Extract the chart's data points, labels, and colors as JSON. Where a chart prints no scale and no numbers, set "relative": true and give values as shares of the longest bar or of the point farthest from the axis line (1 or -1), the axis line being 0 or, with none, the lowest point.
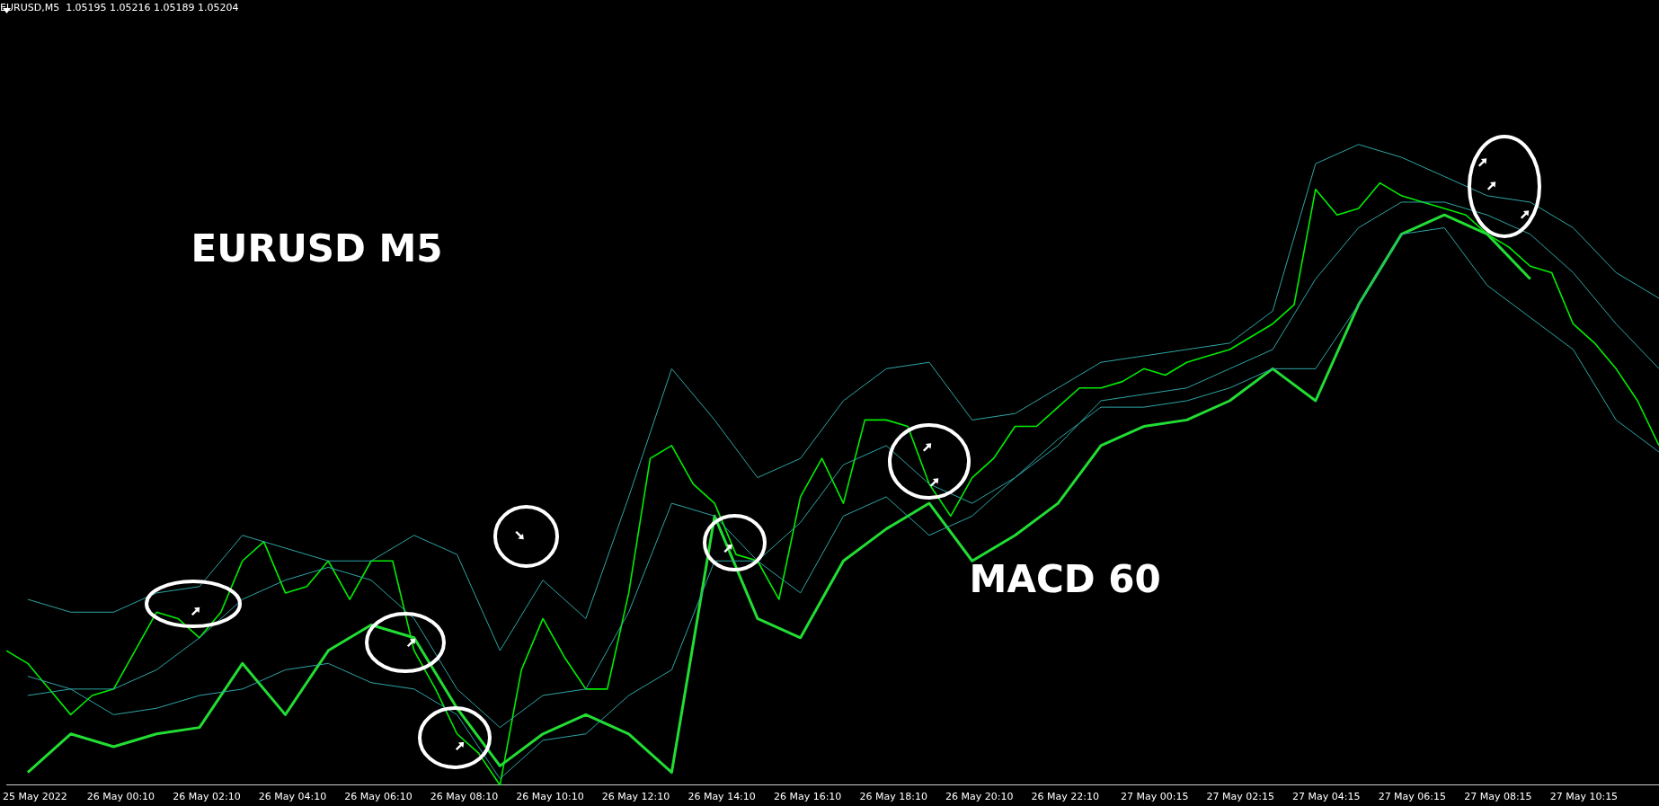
{
  "chart_data": {
    "type": "line",
    "title": "EURUSD,M5  1.05195 1.05216 1.05189 1.05204",
    "annotations": [
      "EURUSD M5",
      "MACD 60"
    ],
    "relative": true,
    "xlim": [
      "2022-05-25T21:30",
      "2022-05-27T12:00"
    ],
    "xticks": [
      {
        "value": "2022-05-25T22:10",
        "label": "25 May 2022"
      },
      {
        "value": "2022-05-26T00:10",
        "label": "26 May 00:10"
      },
      {
        "value": "2022-05-26T02:10",
        "label": "26 May 02:10"
      },
      {
        "value": "2022-05-26T04:10",
        "label": "26 May 04:10"
      },
      {
        "value": "2022-05-26T06:10",
        "label": "26 May 06:10"
      },
      {
        "value": "2022-05-26T08:10",
        "label": "26 May 08:10"
      },
      {
        "value": "2022-05-26T10:10",
        "label": "26 May 10:10"
      },
      {
        "value": "2022-05-26T12:10",
        "label": "26 May 12:10"
      },
      {
        "value": "2022-05-26T14:10",
        "label": "26 May 14:10"
      },
      {
        "value": "2022-05-26T16:10",
        "label": "26 May 16:10"
      },
      {
        "value": "2022-05-26T18:10",
        "label": "26 May 18:10"
      },
      {
        "value": "2022-05-26T20:10",
        "label": "26 May 20:10"
      },
      {
        "value": "2022-05-26T22:10",
        "label": "26 May 22:10"
      },
      {
        "value": "2022-05-27T00:15",
        "label": "27 May 00:15"
      },
      {
        "value": "2022-05-27T02:15",
        "label": "27 May 02:15"
      },
      {
        "value": "2022-05-27T04:15",
        "label": "27 May 04:15"
      },
      {
        "value": "2022-05-27T06:15",
        "label": "27 May 06:15"
      },
      {
        "value": "2022-05-27T08:15",
        "label": "27 May 08:15"
      },
      {
        "value": "2022-05-27T10:15",
        "label": "27 May 10:15"
      }
    ],
    "grid": false,
    "legend": false,
    "marker": "none",
    "line_style": "solid",
    "series": [
      {
        "color": "#2fa4a4",
        "x": [
          "2022-05-25T22:00",
          "2022-05-25T23:00",
          "2022-05-26T00:00",
          "2022-05-26T01:00",
          "2022-05-26T02:00",
          "2022-05-26T03:00",
          "2022-05-26T04:00",
          "2022-05-26T05:00",
          "2022-05-26T06:00",
          "2022-05-26T07:00",
          "2022-05-26T08:00",
          "2022-05-26T09:00",
          "2022-05-26T10:00",
          "2022-05-26T11:00",
          "2022-05-26T12:00",
          "2022-05-26T13:00",
          "2022-05-26T14:00",
          "2022-05-26T15:00",
          "2022-05-26T16:00",
          "2022-05-26T17:00",
          "2022-05-26T18:00",
          "2022-05-26T19:00",
          "2022-05-26T20:00",
          "2022-05-26T21:00",
          "2022-05-26T22:00",
          "2022-05-26T23:00",
          "2022-05-27T00:00",
          "2022-05-27T01:00",
          "2022-05-27T02:00",
          "2022-05-27T03:00",
          "2022-05-27T04:00",
          "2022-05-27T05:00",
          "2022-05-27T06:00",
          "2022-05-27T07:00",
          "2022-05-27T08:00",
          "2022-05-27T09:00",
          "2022-05-27T10:00",
          "2022-05-27T11:00",
          "2022-05-27T12:00"
        ],
        "values": [
          0.29,
          0.27,
          0.27,
          0.3,
          0.31,
          0.39,
          0.37,
          0.35,
          0.35,
          0.39,
          0.36,
          0.21,
          0.32,
          0.26,
          0.45,
          0.65,
          0.57,
          0.48,
          0.51,
          0.6,
          0.65,
          0.66,
          0.57,
          0.58,
          0.62,
          0.66,
          0.67,
          0.68,
          0.69,
          0.74,
          0.97,
          1.0,
          0.98,
          0.95,
          0.92,
          0.91,
          0.87,
          0.8,
          0.76
        ]
      },
      {
        "color": "#2fa4a4",
        "x": [
          "2022-05-25T22:00",
          "2022-05-25T23:00",
          "2022-05-26T00:00",
          "2022-05-26T01:00",
          "2022-05-26T02:00",
          "2022-05-26T03:00",
          "2022-05-26T04:00",
          "2022-05-26T05:00",
          "2022-05-26T06:00",
          "2022-05-26T07:00",
          "2022-05-26T08:00",
          "2022-05-26T09:00",
          "2022-05-26T10:00",
          "2022-05-26T11:00",
          "2022-05-26T12:00",
          "2022-05-26T13:00",
          "2022-05-26T14:00",
          "2022-05-26T15:00",
          "2022-05-26T16:00",
          "2022-05-26T17:00",
          "2022-05-26T18:00",
          "2022-05-26T19:00",
          "2022-05-26T20:00",
          "2022-05-26T21:00",
          "2022-05-26T22:00",
          "2022-05-26T23:00",
          "2022-05-27T00:00",
          "2022-05-27T01:00",
          "2022-05-27T02:00",
          "2022-05-27T03:00",
          "2022-05-27T04:00",
          "2022-05-27T05:00",
          "2022-05-27T06:00",
          "2022-05-27T07:00",
          "2022-05-27T08:00",
          "2022-05-27T09:00",
          "2022-05-27T10:00",
          "2022-05-27T11:00",
          "2022-05-27T12:00"
        ],
        "values": [
          0.14,
          0.15,
          0.11,
          0.12,
          0.14,
          0.15,
          0.18,
          0.19,
          0.16,
          0.15,
          0.11,
          0.01,
          0.07,
          0.08,
          0.14,
          0.18,
          0.35,
          0.35,
          0.3,
          0.42,
          0.45,
          0.39,
          0.42,
          0.48,
          0.54,
          0.59,
          0.59,
          0.6,
          0.62,
          0.65,
          0.65,
          0.75,
          0.86,
          0.87,
          0.78,
          0.73,
          0.68,
          0.57,
          0.52
        ]
      },
      {
        "color": "#2fa4a4",
        "x": [
          "2022-05-25T22:00",
          "2022-05-25T23:00",
          "2022-05-26T00:00",
          "2022-05-26T01:00",
          "2022-05-26T02:00",
          "2022-05-26T03:00",
          "2022-05-26T04:00",
          "2022-05-26T05:00",
          "2022-05-26T06:00",
          "2022-05-26T07:00",
          "2022-05-26T08:00",
          "2022-05-26T09:00",
          "2022-05-26T10:00",
          "2022-05-26T11:00",
          "2022-05-26T12:00",
          "2022-05-26T13:00",
          "2022-05-26T14:00",
          "2022-05-26T15:00",
          "2022-05-26T16:00",
          "2022-05-26T17:00",
          "2022-05-26T18:00",
          "2022-05-26T19:00",
          "2022-05-26T20:00",
          "2022-05-26T21:00",
          "2022-05-26T22:00",
          "2022-05-26T23:00",
          "2022-05-27T00:00",
          "2022-05-27T01:00",
          "2022-05-27T02:00",
          "2022-05-27T03:00",
          "2022-05-27T04:00",
          "2022-05-27T05:00",
          "2022-05-27T06:00",
          "2022-05-27T07:00",
          "2022-05-27T08:00",
          "2022-05-27T09:00",
          "2022-05-27T10:00",
          "2022-05-27T11:00",
          "2022-05-27T12:00"
        ],
        "values": [
          0.17,
          0.15,
          0.15,
          0.18,
          0.23,
          0.29,
          0.32,
          0.34,
          0.32,
          0.26,
          0.15,
          0.09,
          0.14,
          0.15,
          0.27,
          0.44,
          0.42,
          0.35,
          0.41,
          0.5,
          0.53,
          0.47,
          0.44,
          0.48,
          0.53,
          0.6,
          0.61,
          0.62,
          0.65,
          0.68,
          0.79,
          0.87,
          0.91,
          0.91,
          0.89,
          0.86,
          0.8,
          0.72,
          0.65
        ]
      },
      {
        "color": "#22dd33",
        "x": [
          "2022-05-25T22:00",
          "2022-05-25T23:00",
          "2022-05-26T00:00",
          "2022-05-26T01:00",
          "2022-05-26T02:00",
          "2022-05-26T03:00",
          "2022-05-26T04:00",
          "2022-05-26T05:00",
          "2022-05-26T06:00",
          "2022-05-26T07:00",
          "2022-05-26T08:00",
          "2022-05-26T09:00",
          "2022-05-26T10:00",
          "2022-05-26T11:00",
          "2022-05-26T12:00",
          "2022-05-26T13:00",
          "2022-05-26T14:00",
          "2022-05-26T15:00",
          "2022-05-26T16:00",
          "2022-05-26T17:00",
          "2022-05-26T18:00",
          "2022-05-26T19:00",
          "2022-05-26T20:00",
          "2022-05-26T21:00",
          "2022-05-26T22:00",
          "2022-05-26T23:00",
          "2022-05-27T00:00",
          "2022-05-27T01:00",
          "2022-05-27T02:00",
          "2022-05-27T03:00",
          "2022-05-27T04:00",
          "2022-05-27T05:00",
          "2022-05-27T06:00",
          "2022-05-27T07:00",
          "2022-05-27T08:00",
          "2022-05-27T09:00"
        ],
        "values": [
          0.02,
          0.08,
          0.06,
          0.08,
          0.09,
          0.19,
          0.11,
          0.21,
          0.25,
          0.23,
          0.12,
          0.03,
          0.08,
          0.11,
          0.08,
          0.02,
          0.42,
          0.26,
          0.23,
          0.35,
          0.4,
          0.44,
          0.35,
          0.39,
          0.44,
          0.53,
          0.56,
          0.57,
          0.6,
          0.65,
          0.6,
          0.75,
          0.86,
          0.89,
          0.86,
          0.79
        ]
      },
      {
        "color": "#00ee00",
        "x": [
          "2022-05-25T21:30",
          "2022-05-25T22:00",
          "2022-05-25T22:30",
          "2022-05-25T23:00",
          "2022-05-25T23:30",
          "2022-05-26T00:00",
          "2022-05-26T00:30",
          "2022-05-26T01:00",
          "2022-05-26T01:30",
          "2022-05-26T02:00",
          "2022-05-26T02:30",
          "2022-05-26T03:00",
          "2022-05-26T03:30",
          "2022-05-26T04:00",
          "2022-05-26T04:30",
          "2022-05-26T05:00",
          "2022-05-26T05:30",
          "2022-05-26T06:00",
          "2022-05-26T06:30",
          "2022-05-26T07:00",
          "2022-05-26T07:30",
          "2022-05-26T08:00",
          "2022-05-26T08:30",
          "2022-05-26T09:00",
          "2022-05-26T09:30",
          "2022-05-26T10:00",
          "2022-05-26T10:30",
          "2022-05-26T11:00",
          "2022-05-26T11:30",
          "2022-05-26T12:00",
          "2022-05-26T12:30",
          "2022-05-26T13:00",
          "2022-05-26T13:30",
          "2022-05-26T14:00",
          "2022-05-26T14:30",
          "2022-05-26T15:00",
          "2022-05-26T15:30",
          "2022-05-26T16:00",
          "2022-05-26T16:30",
          "2022-05-26T17:00",
          "2022-05-26T17:30",
          "2022-05-26T18:00",
          "2022-05-26T18:30",
          "2022-05-26T19:00",
          "2022-05-26T19:30",
          "2022-05-26T20:00",
          "2022-05-26T20:30",
          "2022-05-26T21:00",
          "2022-05-26T21:30",
          "2022-05-26T22:00",
          "2022-05-26T22:30",
          "2022-05-26T23:00",
          "2022-05-26T23:30",
          "2022-05-27T00:00",
          "2022-05-27T00:30",
          "2022-05-27T01:00",
          "2022-05-27T01:30",
          "2022-05-27T02:00",
          "2022-05-27T02:30",
          "2022-05-27T03:00",
          "2022-05-27T03:30",
          "2022-05-27T04:00",
          "2022-05-27T04:30",
          "2022-05-27T05:00",
          "2022-05-27T05:30",
          "2022-05-27T06:00",
          "2022-05-27T06:30",
          "2022-05-27T07:00",
          "2022-05-27T07:30",
          "2022-05-27T08:00",
          "2022-05-27T08:30",
          "2022-05-27T09:00",
          "2022-05-27T09:30",
          "2022-05-27T10:00",
          "2022-05-27T10:30",
          "2022-05-27T11:00",
          "2022-05-27T11:30",
          "2022-05-27T12:00"
        ],
        "values": [
          0.21,
          0.19,
          0.15,
          0.11,
          0.14,
          0.15,
          0.21,
          0.27,
          0.26,
          0.23,
          0.27,
          0.35,
          0.38,
          0.3,
          0.31,
          0.35,
          0.29,
          0.35,
          0.35,
          0.21,
          0.15,
          0.08,
          0.05,
          0,
          0.18,
          0.26,
          0.2,
          0.15,
          0.15,
          0.3,
          0.51,
          0.53,
          0.47,
          0.44,
          0.36,
          0.35,
          0.29,
          0.45,
          0.51,
          0.44,
          0.57,
          0.57,
          0.56,
          0.47,
          0.42,
          0.48,
          0.51,
          0.56,
          0.56,
          0.59,
          0.62,
          0.62,
          0.63,
          0.65,
          0.64,
          0.66,
          0.67,
          0.68,
          0.7,
          0.72,
          0.75,
          0.93,
          0.89,
          0.9,
          0.94,
          0.92,
          0.91,
          0.9,
          0.89,
          0.86,
          0.84,
          0.81,
          0.8,
          0.72,
          0.69,
          0.65,
          0.6,
          0.53
        ]
      }
    ]
  }
}
